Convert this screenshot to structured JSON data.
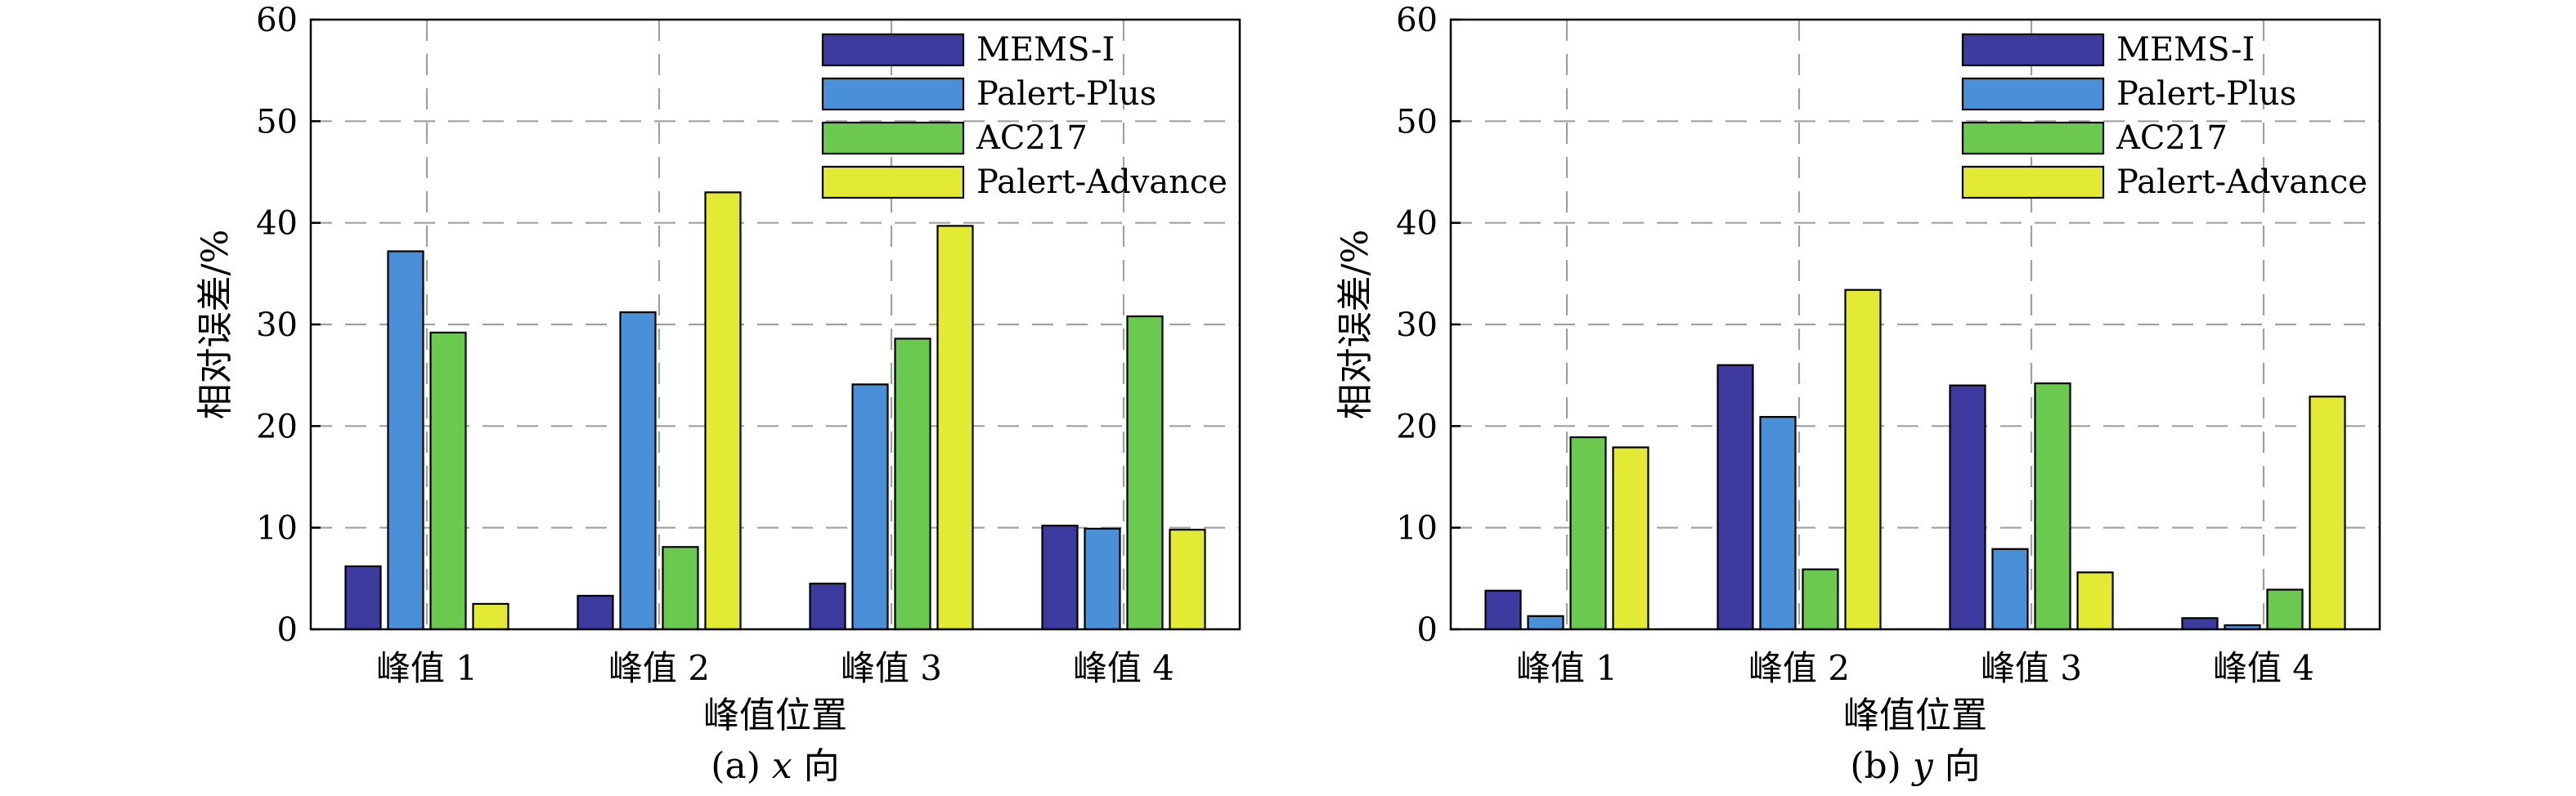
{
  "colors": {
    "MEMS-I": "#3d3b9f",
    "Palert-Plus": "#4a90d9",
    "AC217": "#6cc94f",
    "Palert-Advance": "#e2ea34"
  },
  "chart_data": [
    {
      "type": "bar",
      "caption": "(a) x 向",
      "caption_prefix": "(a) ",
      "caption_var": "x",
      "caption_suffix": " 向",
      "xlabel": "峰值位置",
      "ylabel": "相对误差/%",
      "ylim": [
        0,
        60
      ],
      "yticks": [
        0,
        10,
        20,
        30,
        40,
        50,
        60
      ],
      "grid": true,
      "legend": "top-right",
      "categories": [
        "峰值 1",
        "峰值 2",
        "峰值 3",
        "峰值 4"
      ],
      "series": [
        {
          "name": "MEMS-I",
          "values": [
            6.2,
            3.3,
            4.5,
            10.2
          ]
        },
        {
          "name": "Palert-Plus",
          "values": [
            37.2,
            31.2,
            24.1,
            9.9
          ]
        },
        {
          "name": "AC217",
          "values": [
            29.2,
            8.1,
            28.6,
            30.8
          ]
        },
        {
          "name": "Palert-Advance",
          "values": [
            2.5,
            43.0,
            39.7,
            9.8
          ]
        }
      ]
    },
    {
      "type": "bar",
      "caption": "(b) y 向",
      "caption_prefix": "(b) ",
      "caption_var": "y",
      "caption_suffix": " 向",
      "xlabel": "峰值位置",
      "ylabel": "相对误差/%",
      "ylim": [
        0,
        60
      ],
      "yticks": [
        0,
        10,
        20,
        30,
        40,
        50,
        60
      ],
      "grid": true,
      "legend": "top-right",
      "categories": [
        "峰值 1",
        "峰值 2",
        "峰值 3",
        "峰值 4"
      ],
      "series": [
        {
          "name": "MEMS-I",
          "values": [
            3.8,
            26.0,
            24.0,
            1.1
          ]
        },
        {
          "name": "Palert-Plus",
          "values": [
            1.3,
            20.9,
            7.9,
            0.4
          ]
        },
        {
          "name": "AC217",
          "values": [
            18.9,
            5.9,
            24.2,
            3.9
          ]
        },
        {
          "name": "Palert-Advance",
          "values": [
            17.9,
            33.4,
            5.6,
            22.9
          ]
        }
      ]
    }
  ]
}
